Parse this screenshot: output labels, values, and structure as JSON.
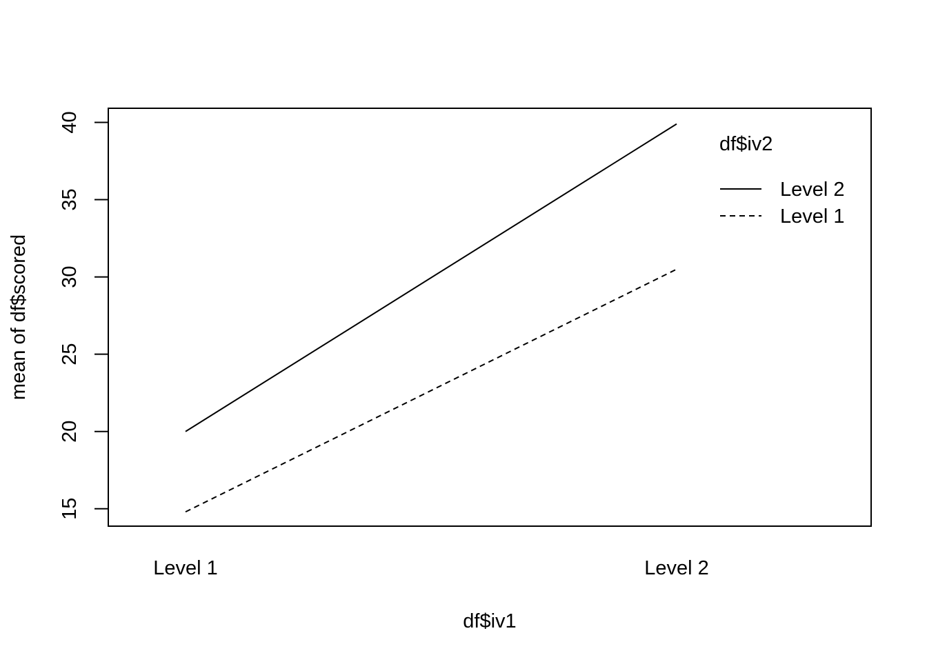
{
  "chart_data": {
    "type": "line",
    "title": "",
    "xlabel": "df$iv1",
    "ylabel": "mean of  df$scored",
    "categories": [
      "Level 1",
      "Level 2"
    ],
    "ylim": [
      14,
      41
    ],
    "yticks": [
      15,
      20,
      25,
      30,
      35,
      40
    ],
    "series": [
      {
        "name": "Level 2",
        "values": [
          20,
          39.9
        ],
        "linestyle": "solid"
      },
      {
        "name": "Level 1",
        "values": [
          14.8,
          30.5
        ],
        "linestyle": "dashed"
      }
    ],
    "legend": {
      "title": "df$iv2",
      "placement": "top-right",
      "entries": [
        "Level 2",
        "Level 1"
      ]
    },
    "grid": false,
    "colors": {
      "line": "#000000",
      "background": "#ffffff"
    }
  }
}
